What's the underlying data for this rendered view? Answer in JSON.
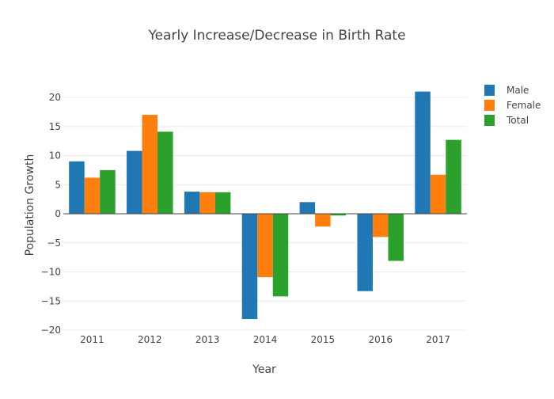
{
  "chart_data": {
    "type": "bar",
    "title": "Yearly Increase/Decrease in Birth Rate",
    "xlabel": "Year",
    "ylabel": "Population Growth",
    "categories": [
      "2011",
      "2012",
      "2013",
      "2014",
      "2015",
      "2016",
      "2017"
    ],
    "series": [
      {
        "name": "Male",
        "color": "#1f77b4",
        "values": [
          9,
          10.8,
          3.8,
          -18.1,
          2,
          -13.3,
          21
        ]
      },
      {
        "name": "Female",
        "color": "#ff7f0e",
        "values": [
          6.2,
          17,
          3.7,
          -10.9,
          -2.2,
          -4,
          6.7
        ]
      },
      {
        "name": "Total",
        "color": "#2ca02c",
        "values": [
          7.5,
          14.1,
          3.7,
          -14.2,
          -0.3,
          -8.1,
          12.7
        ]
      }
    ],
    "ylim": [
      -20,
      23
    ],
    "yticks": [
      -20,
      -15,
      -10,
      -5,
      0,
      5,
      10,
      15,
      20
    ],
    "ytick_labels": [
      "−20",
      "−15",
      "−10",
      "−5",
      "0",
      "5",
      "10",
      "15",
      "20"
    ],
    "grid": true,
    "legend_position": "top-right"
  }
}
